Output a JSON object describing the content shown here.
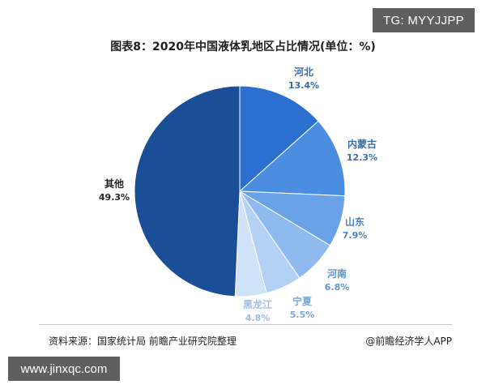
{
  "badges": {
    "top_right": "TG: MYYJJPP",
    "bottom_left": "www.jinxqc.com"
  },
  "chart_data": {
    "type": "pie",
    "title": "图表8：2020年中国液体乳地区占比情况(单位：%)",
    "slices": [
      {
        "label": "河北",
        "value": 13.4,
        "value_label": "13.4%",
        "color": "#2b6fd0",
        "label_color": "#3a6ea8"
      },
      {
        "label": "内蒙古",
        "value": 12.3,
        "value_label": "12.3%",
        "color": "#4b8de0",
        "label_color": "#3a6ea8"
      },
      {
        "label": "山东",
        "value": 7.9,
        "value_label": "7.9%",
        "color": "#6aa2e8",
        "label_color": "#4a82c0"
      },
      {
        "label": "河南",
        "value": 6.8,
        "value_label": "6.8%",
        "color": "#8fbaf0",
        "label_color": "#5f95cf"
      },
      {
        "label": "宁夏",
        "value": 5.5,
        "value_label": "5.5%",
        "color": "#b3d0f5",
        "label_color": "#7aa8da"
      },
      {
        "label": "黑龙江",
        "value": 4.8,
        "value_label": "4.8%",
        "color": "#d0e2f8",
        "label_color": "#9dbde3"
      },
      {
        "label": "其他",
        "value": 49.3,
        "value_label": "49.3%",
        "color": "#1a4e96",
        "label_color": "#222222"
      }
    ],
    "start_angle_deg": 0,
    "direction": "clockwise"
  },
  "footer": {
    "source": "资料来源：国家统计局 前瞻产业研究院整理",
    "publisher": "@前瞻经济学人APP"
  }
}
